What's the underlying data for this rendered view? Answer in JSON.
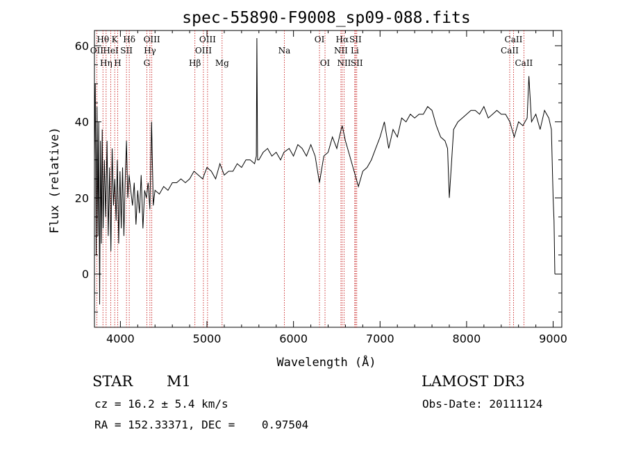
{
  "chart_data": {
    "type": "line",
    "title": "spec-55890-F9008_sp09-088.fits",
    "xlabel": "Wavelength (Å)",
    "ylabel": "Flux (relative)",
    "xlim": [
      3700,
      9100
    ],
    "ylim": [
      -14,
      64
    ],
    "xticks": [
      4000,
      5000,
      6000,
      7000,
      8000,
      9000
    ],
    "yticks": [
      0,
      20,
      40,
      60
    ],
    "series": [
      {
        "name": "spectrum",
        "x": [
          3700,
          3710,
          3720,
          3730,
          3740,
          3750,
          3760,
          3770,
          3780,
          3790,
          3800,
          3815,
          3830,
          3845,
          3860,
          3875,
          3890,
          3905,
          3920,
          3935,
          3950,
          3965,
          3980,
          3995,
          4010,
          4025,
          4040,
          4055,
          4070,
          4085,
          4100,
          4120,
          4140,
          4160,
          4180,
          4200,
          4220,
          4240,
          4260,
          4280,
          4300,
          4320,
          4340,
          4360,
          4380,
          4400,
          4450,
          4500,
          4550,
          4600,
          4650,
          4700,
          4750,
          4800,
          4850,
          4900,
          4950,
          5000,
          5050,
          5100,
          5150,
          5200,
          5250,
          5300,
          5350,
          5400,
          5450,
          5500,
          5550,
          5570,
          5577,
          5585,
          5600,
          5650,
          5700,
          5750,
          5800,
          5850,
          5890,
          5950,
          6000,
          6050,
          6100,
          6150,
          6200,
          6250,
          6300,
          6350,
          6400,
          6450,
          6500,
          6550,
          6563,
          6600,
          6650,
          6700,
          6750,
          6800,
          6850,
          6900,
          6950,
          7000,
          7050,
          7100,
          7150,
          7200,
          7250,
          7300,
          7350,
          7400,
          7450,
          7500,
          7550,
          7600,
          7650,
          7700,
          7750,
          7780,
          7800,
          7850,
          7900,
          7950,
          8000,
          8050,
          8100,
          8150,
          8200,
          8250,
          8300,
          8350,
          8400,
          8450,
          8500,
          8550,
          8600,
          8650,
          8700,
          8720,
          8750,
          8800,
          8850,
          8900,
          8950,
          8980,
          9000,
          9010,
          9020
        ],
        "y": [
          30,
          50,
          5,
          44,
          10,
          40,
          -8,
          35,
          8,
          38,
          12,
          30,
          15,
          35,
          10,
          28,
          6,
          33,
          18,
          25,
          14,
          30,
          8,
          27,
          12,
          28,
          10,
          24,
          35,
          20,
          26,
          22,
          18,
          24,
          13,
          22,
          16,
          26,
          12,
          22,
          20,
          24,
          17,
          40,
          18,
          22,
          21,
          23,
          22,
          24,
          24,
          25,
          24,
          25,
          27,
          26,
          25,
          28,
          27,
          25,
          29,
          26,
          27,
          27,
          29,
          28,
          30,
          30,
          29,
          31,
          62,
          30,
          30,
          32,
          33,
          31,
          32,
          30,
          32,
          33,
          31,
          34,
          33,
          31,
          34,
          31,
          24,
          31,
          32,
          36,
          33,
          38,
          39,
          35,
          31,
          27,
          23,
          27,
          28,
          30,
          33,
          36,
          40,
          33,
          38,
          36,
          41,
          40,
          42,
          41,
          42,
          42,
          44,
          43,
          39,
          36,
          35,
          33,
          20,
          38,
          40,
          41,
          42,
          43,
          43,
          42,
          44,
          41,
          42,
          43,
          42,
          42,
          40,
          36,
          40,
          39,
          41,
          52,
          40,
          42,
          38,
          43,
          41,
          38,
          20,
          14,
          0
        ]
      }
    ],
    "lines": [
      {
        "name": "OII",
        "x": 3727,
        "row": 1
      },
      {
        "name": "Hθ",
        "x": 3798,
        "row": 0
      },
      {
        "name": "HeI",
        "x": 3889,
        "row": 1
      },
      {
        "name": "Hη",
        "x": 3835,
        "row": 2
      },
      {
        "name": "K",
        "x": 3934,
        "row": 0
      },
      {
        "name": "H",
        "x": 3969,
        "row": 2
      },
      {
        "name": "SII",
        "x": 4070,
        "row": 1
      },
      {
        "name": "Hδ",
        "x": 4102,
        "row": 0
      },
      {
        "name": "OIII",
        "x": 4363,
        "row": 0
      },
      {
        "name": "Hγ",
        "x": 4341,
        "row": 1
      },
      {
        "name": "G",
        "x": 4305,
        "row": 2
      },
      {
        "name": "Hβ",
        "x": 4861,
        "row": 2
      },
      {
        "name": "OIII",
        "x": 5007,
        "row": 0
      },
      {
        "name": "OIII",
        "x": 4959,
        "row": 1
      },
      {
        "name": "Mg",
        "x": 5175,
        "row": 2
      },
      {
        "name": "Na",
        "x": 5894,
        "row": 1
      },
      {
        "name": "OI",
        "x": 6300,
        "row": 0
      },
      {
        "name": "OI",
        "x": 6364,
        "row": 2
      },
      {
        "name": "Hα",
        "x": 6563,
        "row": 0
      },
      {
        "name": "NII",
        "x": 6548,
        "row": 1
      },
      {
        "name": "NII",
        "x": 6584,
        "row": 2
      },
      {
        "name": "SII",
        "x": 6716,
        "row": 0
      },
      {
        "name": "Li",
        "x": 6708,
        "row": 1
      },
      {
        "name": "SII",
        "x": 6731,
        "row": 2
      },
      {
        "name": "CaII",
        "x": 8542,
        "row": 0
      },
      {
        "name": "CaII",
        "x": 8498,
        "row": 1
      },
      {
        "name": "CaII",
        "x": 8662,
        "row": 2
      }
    ]
  },
  "info": {
    "object_class": "STAR",
    "subclass": "M1",
    "survey": "LAMOST DR3",
    "cz": "cz = 16.2 ± 5.4 km/s",
    "obs_date": "Obs-Date: 20111124",
    "coords": "RA = 152.33371, DEC =    0.97504"
  }
}
